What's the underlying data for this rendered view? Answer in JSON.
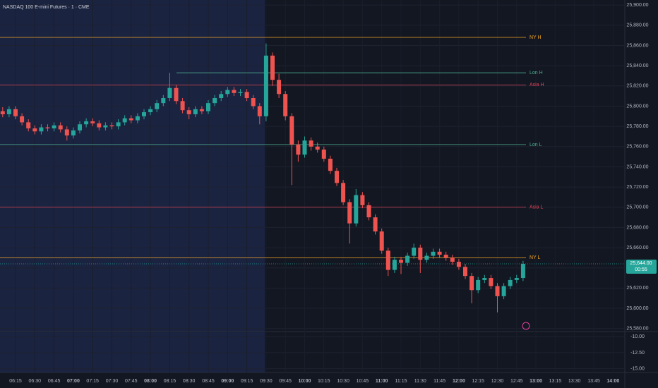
{
  "chart_data": {
    "type": "candlestick",
    "title": "NASDAQ 100 E-mini Futures · 1 · CME",
    "up_color": "#26a69a",
    "down_color": "#ef5350",
    "x": [
      "06:05",
      "06:10",
      "06:15",
      "06:20",
      "06:25",
      "06:30",
      "06:35",
      "06:40",
      "06:45",
      "06:50",
      "06:55",
      "07:00",
      "07:05",
      "07:10",
      "07:15",
      "07:20",
      "07:25",
      "07:30",
      "07:35",
      "07:40",
      "07:45",
      "07:50",
      "07:55",
      "08:00",
      "08:05",
      "08:10",
      "08:15",
      "08:20",
      "08:25",
      "08:30",
      "08:35",
      "08:40",
      "08:45",
      "08:50",
      "08:55",
      "09:00",
      "09:05",
      "09:10",
      "09:15",
      "09:20",
      "09:25",
      "09:30",
      "09:35",
      "09:40",
      "09:45",
      "09:50",
      "09:55",
      "10:00",
      "10:05",
      "10:10",
      "10:15",
      "10:20",
      "10:25",
      "10:30",
      "10:35",
      "10:40",
      "10:45",
      "10:50",
      "10:55",
      "11:00",
      "11:05",
      "11:10",
      "11:15",
      "11:20",
      "11:25",
      "11:30",
      "11:35",
      "11:40",
      "11:45",
      "11:50",
      "11:55",
      "12:00",
      "12:05",
      "12:10",
      "12:15",
      "12:20",
      "12:25",
      "12:30",
      "12:35",
      "12:40",
      "12:45",
      "12:50"
    ],
    "open": [
      25795,
      25792,
      25797,
      25790,
      25784,
      25778,
      25775,
      25779,
      25778,
      25781,
      25777,
      25771,
      25776,
      25782,
      25785,
      25783,
      25779,
      25781,
      25780,
      25784,
      25788,
      25786,
      25790,
      25794,
      25797,
      25803,
      25808,
      25818,
      25805,
      25796,
      25792,
      25797,
      25795,
      25803,
      25808,
      25812,
      25816,
      25813,
      25814,
      25808,
      25800,
      25790,
      25850,
      25826,
      25812,
      25790,
      25762,
      25752,
      25766,
      25760,
      25757,
      25748,
      25736,
      25724,
      25705,
      25684,
      25712,
      25702,
      25690,
      25676,
      25657,
      25638,
      25648,
      25645,
      25652,
      25660,
      25648,
      25652,
      25656,
      25653,
      25650,
      25646,
      25641,
      25632,
      25618,
      25628,
      25630,
      25622,
      25612,
      25622,
      25628,
      25630
    ],
    "high": [
      25799,
      25800,
      25800,
      25793,
      25787,
      25781,
      25782,
      25782,
      25784,
      25784,
      25780,
      25779,
      25785,
      25788,
      25788,
      25786,
      25784,
      25784,
      25787,
      25791,
      25791,
      25793,
      25797,
      25800,
      25806,
      25811,
      25833,
      25821,
      25808,
      25799,
      25800,
      25800,
      25806,
      25811,
      25815,
      25819,
      25819,
      25817,
      25817,
      25811,
      25803,
      25862,
      25853,
      25832,
      25815,
      25793,
      25766,
      25770,
      25769,
      25764,
      25760,
      25751,
      25739,
      25727,
      25708,
      25718,
      25715,
      25705,
      25693,
      25679,
      25660,
      25651,
      25651,
      25655,
      25664,
      25663,
      25655,
      25659,
      25659,
      25656,
      25653,
      25649,
      25644,
      25635,
      25631,
      25633,
      25633,
      25625,
      25625,
      25631,
      25633,
      25647
    ],
    "low": [
      25789,
      25789,
      25787,
      25781,
      25775,
      25772,
      25772,
      25775,
      25775,
      25774,
      25766,
      25768,
      25773,
      25779,
      25780,
      25776,
      25776,
      25777,
      25777,
      25781,
      25783,
      25783,
      25787,
      25791,
      25794,
      25800,
      25805,
      25802,
      25793,
      25787,
      25789,
      25792,
      25792,
      25800,
      25805,
      25809,
      25810,
      25810,
      25805,
      25797,
      25782,
      25785,
      25820,
      25808,
      25786,
      25722,
      25745,
      25749,
      25756,
      25754,
      25745,
      25733,
      25721,
      25702,
      25664,
      25681,
      25699,
      25687,
      25673,
      25654,
      25632,
      25635,
      25634,
      25642,
      25649,
      25635,
      25645,
      25649,
      25650,
      25647,
      25643,
      25638,
      25629,
      25605,
      25615,
      25625,
      25619,
      25596,
      25609,
      25619,
      25625,
      25627
    ],
    "close": [
      25792,
      25797,
      25790,
      25784,
      25778,
      25775,
      25779,
      25778,
      25781,
      25777,
      25771,
      25776,
      25782,
      25785,
      25783,
      25779,
      25781,
      25780,
      25784,
      25788,
      25786,
      25790,
      25794,
      25797,
      25803,
      25808,
      25818,
      25805,
      25796,
      25792,
      25797,
      25795,
      25803,
      25808,
      25812,
      25816,
      25813,
      25814,
      25808,
      25800,
      25790,
      25850,
      25826,
      25812,
      25790,
      25762,
      25752,
      25766,
      25760,
      25757,
      25748,
      25736,
      25724,
      25705,
      25684,
      25712,
      25702,
      25690,
      25676,
      25657,
      25638,
      25648,
      25645,
      25652,
      25660,
      25648,
      25652,
      25656,
      25653,
      25650,
      25646,
      25641,
      25632,
      25618,
      25628,
      25630,
      25622,
      25612,
      25622,
      25628,
      25630,
      25644
    ],
    "ylim": [
      25577,
      25905
    ],
    "yticks": [
      {
        "value": 25580,
        "label": "25,580.00"
      },
      {
        "value": 25600,
        "label": "25,600.00"
      },
      {
        "value": 25620,
        "label": "25,620.00"
      },
      {
        "value": 25640,
        "label": "25,640.00"
      },
      {
        "value": 25660,
        "label": "25,660.00"
      },
      {
        "value": 25680,
        "label": "25,680.00"
      },
      {
        "value": 25700,
        "label": "25,700.00"
      },
      {
        "value": 25720,
        "label": "25,720.00"
      },
      {
        "value": 25740,
        "label": "25,740.00"
      },
      {
        "value": 25760,
        "label": "25,760.00"
      },
      {
        "value": 25780,
        "label": "25,780.00"
      },
      {
        "value": 25800,
        "label": "25,800.00"
      },
      {
        "value": 25820,
        "label": "25,820.00"
      },
      {
        "value": 25840,
        "label": "25,840.00"
      },
      {
        "value": 25860,
        "label": "25,860.00"
      },
      {
        "value": 25880,
        "label": "25,880.00"
      },
      {
        "value": 25900,
        "label": "25,900.00"
      }
    ],
    "xticks": [
      "06:15",
      "06:30",
      "06:45",
      "07:00",
      "07:15",
      "07:30",
      "07:45",
      "08:00",
      "08:15",
      "08:30",
      "08:45",
      "09:00",
      "09:15",
      "09:30",
      "09:45",
      "10:00",
      "10:15",
      "10:30",
      "10:45",
      "11:00",
      "11:15",
      "11:30",
      "11:45",
      "12:00",
      "12:15",
      "12:30",
      "12:45",
      "13:00",
      "13:15",
      "13:30",
      "13:45",
      "14:00"
    ],
    "levels": [
      {
        "name": "NY H",
        "value": 25868,
        "color": "#f5a623"
      },
      {
        "name": "Lon H",
        "value": 25833,
        "color": "#4caf8f"
      },
      {
        "name": "Asia H",
        "value": 25821,
        "color": "#e0455a"
      },
      {
        "name": "Lon L",
        "value": 25762,
        "color": "#4caf8f"
      },
      {
        "name": "Asia L",
        "value": 25700,
        "color": "#e0455a"
      },
      {
        "name": "NY L",
        "value": 25650,
        "color": "#f5a623"
      }
    ],
    "last_price": {
      "value": 25644,
      "label": "25,644.00"
    },
    "countdown": "00:55",
    "indicator_pane": {
      "ylim": [
        -9.2,
        -15.6
      ],
      "yticks": [
        {
          "value": -10,
          "label": "-10.00"
        },
        {
          "value": -12.5,
          "label": "-12.50"
        },
        {
          "value": -15,
          "label": "-15.00"
        }
      ]
    }
  }
}
